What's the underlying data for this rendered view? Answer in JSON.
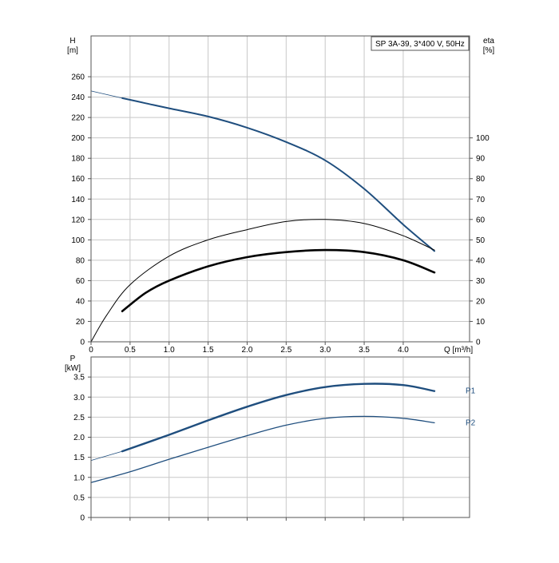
{
  "chart_data": [
    {
      "type": "line",
      "title": "SP 3A-39, 3*400 V, 50Hz",
      "xlabel": "Q [m³/h]",
      "ylabel": "H",
      "ylabel_unit": "[m]",
      "y2label": "eta",
      "y2label_unit": "[%]",
      "xlim": [
        0,
        4.85
      ],
      "ylim": [
        0,
        300
      ],
      "y2lim": [
        0,
        150
      ],
      "grid": true,
      "x_ticks": [
        "0",
        "0.5",
        "1.0",
        "1.5",
        "2.0",
        "2.5",
        "3.0",
        "3.5",
        "4.0"
      ],
      "x_tick_values": [
        0,
        0.5,
        1.0,
        1.5,
        2.0,
        2.5,
        3.0,
        3.5,
        4.0
      ],
      "y_ticks": [
        "0",
        "20",
        "40",
        "60",
        "80",
        "100",
        "120",
        "140",
        "160",
        "180",
        "200",
        "220",
        "240",
        "260"
      ],
      "y_tick_values": [
        0,
        20,
        40,
        60,
        80,
        100,
        120,
        140,
        160,
        180,
        200,
        220,
        240,
        260
      ],
      "y2_ticks": [
        "0",
        "10",
        "20",
        "30",
        "40",
        "50",
        "60",
        "70",
        "80",
        "90",
        "100"
      ],
      "y2_tick_values": [
        0,
        10,
        20,
        30,
        40,
        50,
        60,
        70,
        80,
        90,
        100
      ],
      "series": [
        {
          "axis": "y",
          "color": "#1f4e7e",
          "x": [
            0.4,
            0.7,
            1.0,
            1.5,
            2.0,
            2.5,
            3.0,
            3.5,
            4.0,
            4.4
          ],
          "values": [
            239,
            234,
            229,
            221,
            210,
            196,
            178,
            150,
            115,
            89
          ]
        },
        {
          "axis": "y",
          "color": "#1f4e7e",
          "thin": true,
          "x": [
            0,
            0.4
          ],
          "values": [
            246,
            239
          ]
        },
        {
          "axis": "y2",
          "color": "#000000",
          "x": [
            0,
            0.2,
            0.5,
            1.0,
            1.5,
            2.0,
            2.5,
            3.0,
            3.5,
            4.0,
            4.4
          ],
          "values": [
            0,
            13,
            28,
            42,
            50,
            55,
            59,
            60,
            58,
            52,
            45
          ]
        },
        {
          "axis": "y2",
          "color": "#000000",
          "bold": true,
          "x": [
            0.4,
            0.7,
            1.0,
            1.5,
            2.0,
            2.5,
            3.0,
            3.5,
            4.0,
            4.4
          ],
          "values": [
            15,
            24,
            30,
            37,
            41.5,
            44,
            45,
            44,
            40,
            34
          ]
        }
      ]
    },
    {
      "type": "line",
      "ylabel": "P",
      "ylabel_unit": "[kW]",
      "xlim": [
        0,
        4.85
      ],
      "ylim": [
        0,
        4.0
      ],
      "grid": true,
      "y_ticks": [
        "0",
        "0.5",
        "1.0",
        "1.5",
        "2.0",
        "2.5",
        "3.0",
        "3.5"
      ],
      "y_tick_values": [
        0,
        0.5,
        1.0,
        1.5,
        2.0,
        2.5,
        3.0,
        3.5
      ],
      "series": [
        {
          "name": "P1",
          "color": "#1f4e7e",
          "x": [
            0.4,
            1.0,
            1.5,
            2.0,
            2.5,
            3.0,
            3.5,
            4.0,
            4.4
          ],
          "values": [
            1.65,
            2.06,
            2.42,
            2.76,
            3.05,
            3.25,
            3.33,
            3.3,
            3.15
          ]
        },
        {
          "color": "#1f4e7e",
          "thin": true,
          "x": [
            0,
            0.4
          ],
          "values": [
            1.42,
            1.65
          ]
        },
        {
          "name": "P2",
          "color": "#1f4e7e",
          "x": [
            0,
            0.5,
            1.0,
            1.5,
            2.0,
            2.5,
            3.0,
            3.5,
            4.0,
            4.4
          ],
          "values": [
            0.87,
            1.14,
            1.45,
            1.75,
            2.04,
            2.3,
            2.47,
            2.52,
            2.47,
            2.36
          ]
        }
      ]
    }
  ]
}
